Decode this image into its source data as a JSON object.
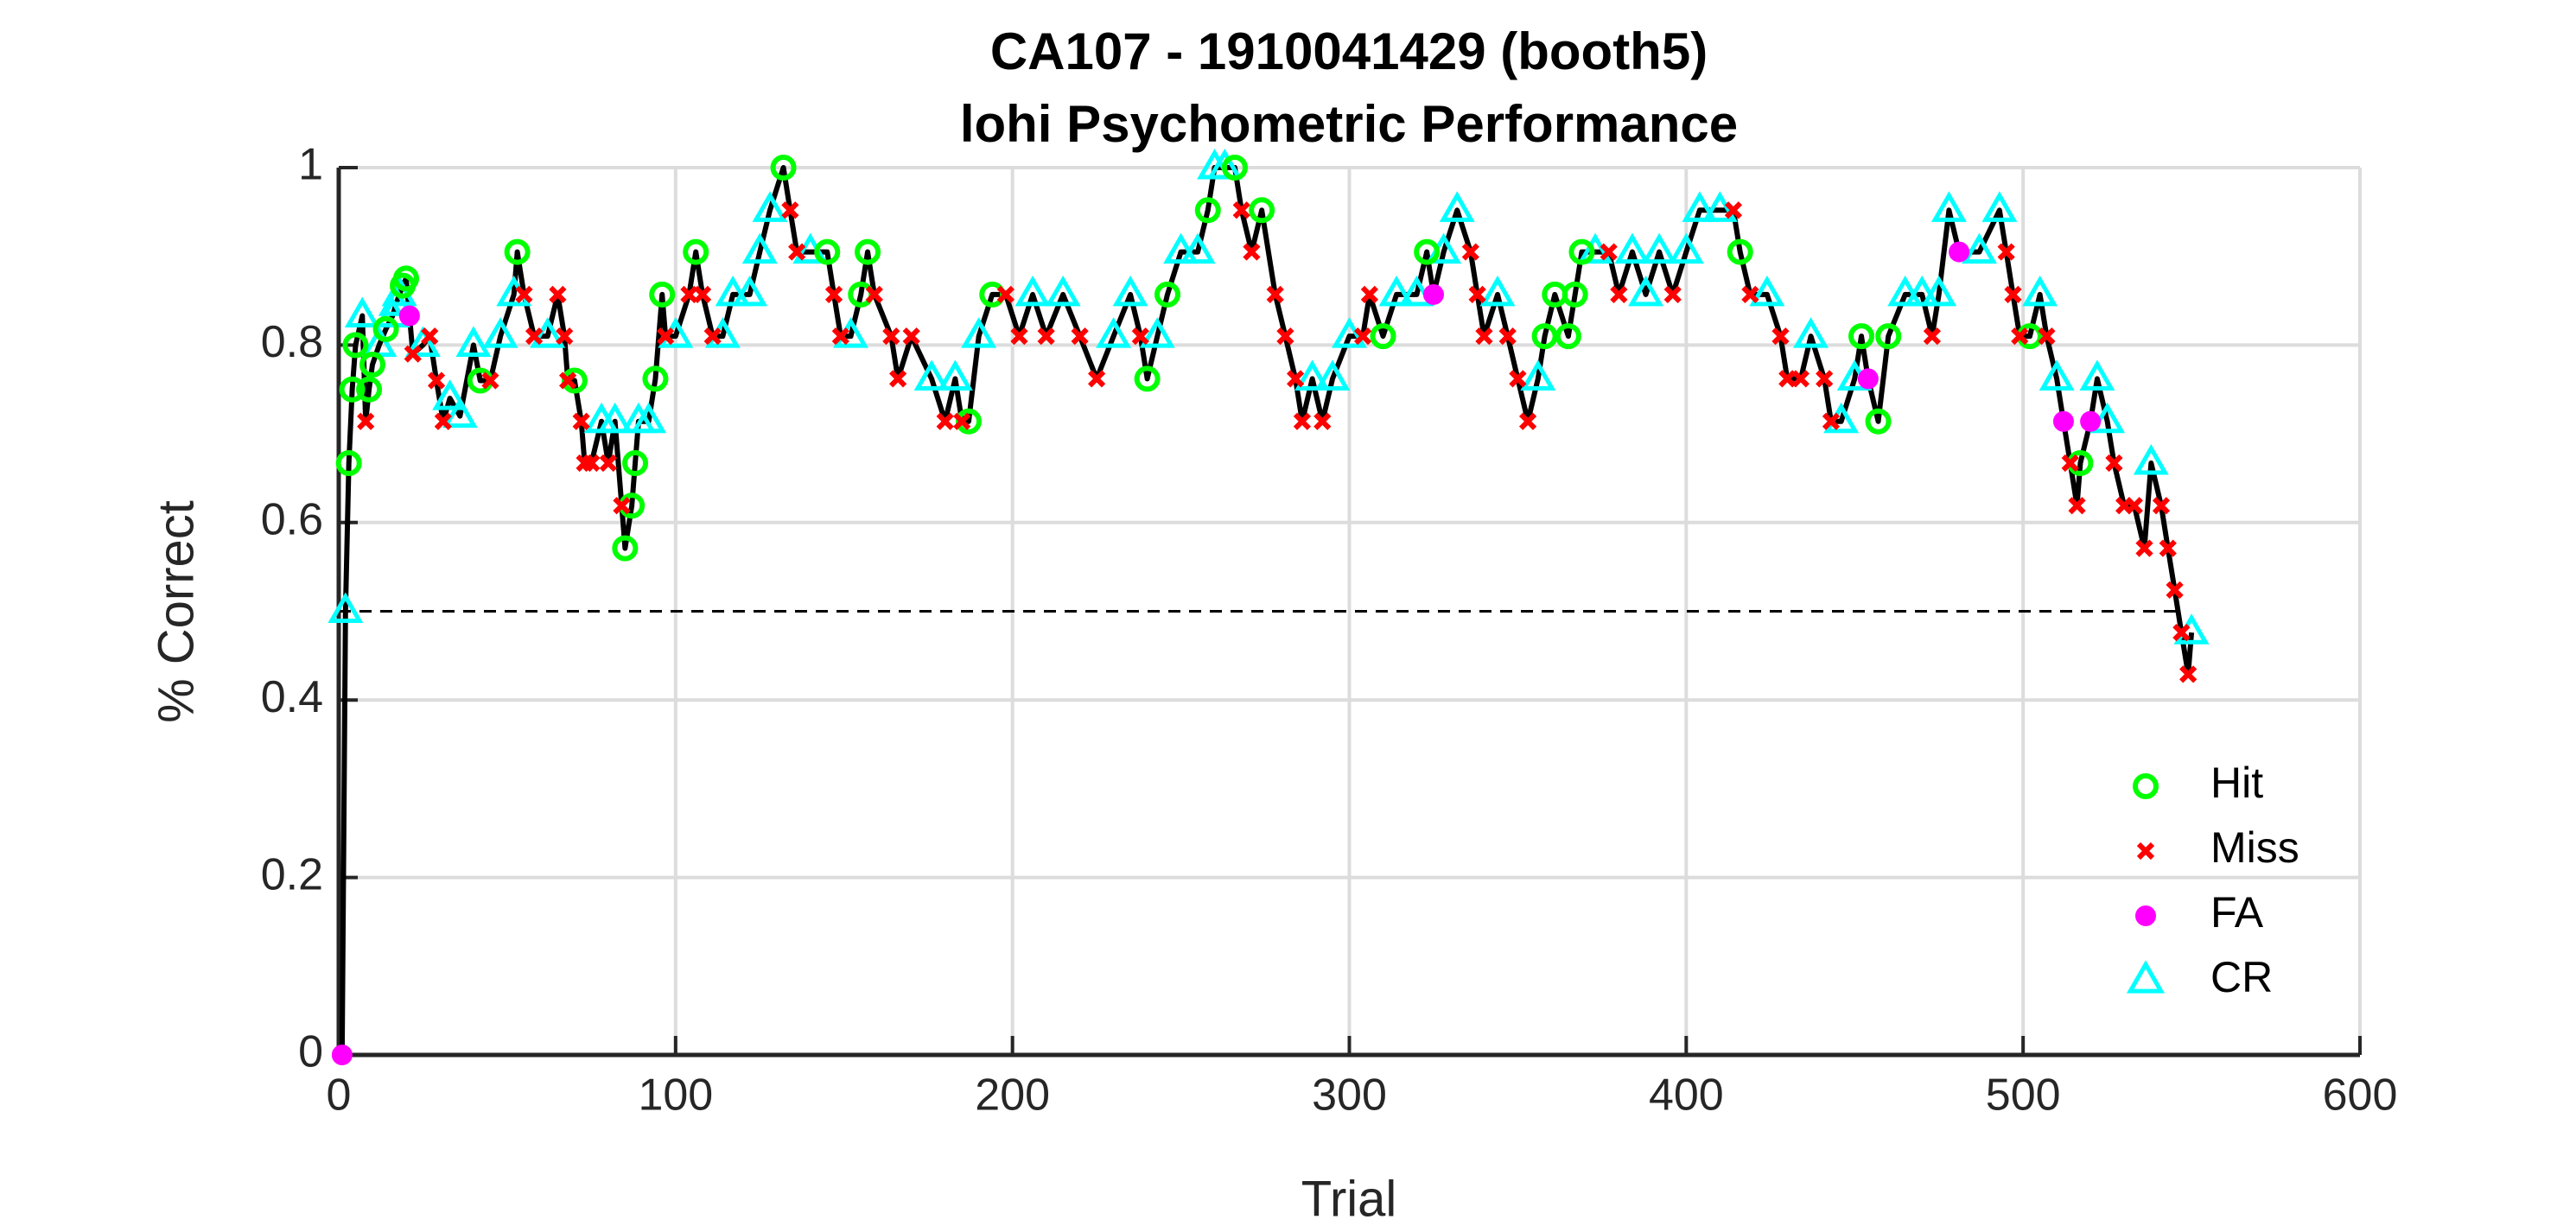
{
  "chart_data": {
    "type": "line",
    "title": "CA107 - 1910041429 (booth5)",
    "subtitle": "lohi Psychometric Performance",
    "xlabel": "Trial",
    "ylabel": "% Correct",
    "xlim": [
      0,
      600
    ],
    "xticks": [
      0,
      100,
      200,
      300,
      400,
      500,
      600
    ],
    "ylim": [
      0,
      1
    ],
    "yticks": [
      0,
      0.2,
      0.4,
      0.6,
      0.8,
      1
    ],
    "grid": true,
    "legend": "right",
    "reference_line": {
      "value": 0.5,
      "xlim": [
        0,
        546
      ],
      "color": "#000000",
      "style": "dashed"
    },
    "line": {
      "color": "#000000",
      "x": [
        1,
        2,
        3,
        4,
        5,
        7,
        8,
        9,
        10,
        12,
        14,
        16,
        17,
        18,
        19,
        20,
        21,
        22,
        25,
        27,
        29,
        31,
        33,
        36,
        40,
        42,
        45,
        48,
        52,
        53,
        55,
        58,
        62,
        65,
        67,
        68,
        70,
        72,
        73,
        75,
        78,
        80,
        82,
        84,
        85,
        87,
        88,
        89,
        92,
        94,
        96,
        97,
        100,
        104,
        106,
        108,
        111,
        114,
        117,
        122,
        125,
        128,
        132,
        134,
        136,
        140,
        145,
        147,
        149,
        152,
        155,
        157,
        159,
        164,
        166,
        170,
        176,
        180,
        183,
        185,
        187,
        190,
        194,
        198,
        202,
        206,
        210,
        215,
        220,
        225,
        230,
        235,
        238,
        240,
        243,
        246,
        250,
        255,
        258,
        260,
        263,
        266,
        268,
        271,
        274,
        278,
        281,
        284,
        286,
        289,
        292,
        295,
        300,
        304,
        306,
        310,
        314,
        320,
        323,
        325,
        328,
        332,
        336,
        338,
        340,
        344,
        347,
        350,
        353,
        356,
        358,
        361,
        365,
        367,
        369,
        373,
        377,
        380,
        384,
        388,
        392,
        396,
        400,
        404,
        410,
        414,
        416,
        419,
        424,
        428,
        430,
        434,
        437,
        441,
        443,
        446,
        450,
        452,
        454,
        457,
        460,
        465,
        470,
        473,
        475,
        478,
        481,
        487,
        493,
        495,
        497,
        499,
        502,
        505,
        507,
        510,
        512,
        514,
        516,
        517,
        520,
        522,
        525,
        527,
        530,
        533,
        536,
        538,
        541,
        543,
        545,
        547,
        549,
        550
      ],
      "values": [
        0,
        0.5,
        0.667,
        0.75,
        0.8,
        0.833,
        0.714,
        0.75,
        0.778,
        0.8,
        0.818,
        0.833,
        0.846,
        0.857,
        0.867,
        0.875,
        0.833,
        0.79,
        0.8,
        0.81,
        0.76,
        0.714,
        0.74,
        0.72,
        0.8,
        0.76,
        0.76,
        0.81,
        0.857,
        0.905,
        0.857,
        0.81,
        0.81,
        0.857,
        0.81,
        0.76,
        0.76,
        0.714,
        0.667,
        0.667,
        0.714,
        0.667,
        0.714,
        0.619,
        0.571,
        0.619,
        0.667,
        0.714,
        0.714,
        0.762,
        0.857,
        0.81,
        0.81,
        0.857,
        0.905,
        0.857,
        0.81,
        0.81,
        0.857,
        0.857,
        0.905,
        0.952,
        1,
        0.952,
        0.905,
        0.905,
        0.905,
        0.857,
        0.81,
        0.81,
        0.857,
        0.905,
        0.857,
        0.81,
        0.762,
        0.81,
        0.762,
        0.714,
        0.762,
        0.714,
        0.714,
        0.81,
        0.857,
        0.857,
        0.81,
        0.857,
        0.81,
        0.857,
        0.81,
        0.762,
        0.81,
        0.857,
        0.81,
        0.762,
        0.81,
        0.857,
        0.905,
        0.905,
        0.952,
        1,
        1,
        1,
        0.952,
        0.905,
        0.952,
        0.857,
        0.81,
        0.762,
        0.714,
        0.762,
        0.714,
        0.762,
        0.81,
        0.81,
        0.857,
        0.81,
        0.857,
        0.857,
        0.905,
        0.857,
        0.905,
        0.952,
        0.905,
        0.857,
        0.81,
        0.857,
        0.81,
        0.762,
        0.714,
        0.762,
        0.81,
        0.857,
        0.81,
        0.857,
        0.905,
        0.905,
        0.905,
        0.857,
        0.905,
        0.857,
        0.905,
        0.857,
        0.905,
        0.952,
        0.952,
        0.952,
        0.905,
        0.857,
        0.857,
        0.81,
        0.762,
        0.762,
        0.81,
        0.762,
        0.714,
        0.714,
        0.762,
        0.81,
        0.762,
        0.714,
        0.81,
        0.857,
        0.857,
        0.81,
        0.857,
        0.952,
        0.905,
        0.905,
        0.952,
        0.905,
        0.857,
        0.81,
        0.81,
        0.857,
        0.81,
        0.762,
        0.714,
        0.667,
        0.619,
        0.667,
        0.714,
        0.762,
        0.714,
        0.667,
        0.619,
        0.619,
        0.571,
        0.667,
        0.619,
        0.571,
        0.524,
        0.476,
        0.429,
        0.476
      ]
    },
    "series": [
      {
        "name": "Hit",
        "color": "#00ff00",
        "marker": "circle",
        "x": [
          3,
          4,
          5,
          9,
          10,
          14,
          19,
          20,
          42,
          53,
          70,
          85,
          87,
          88,
          94,
          96,
          106,
          132,
          145,
          155,
          157,
          187,
          194,
          240,
          246,
          258,
          266,
          274,
          310,
          323,
          358,
          361,
          365,
          367,
          369,
          416,
          452,
          457,
          460,
          502,
          517
        ],
        "values": [
          0.667,
          0.75,
          0.8,
          0.75,
          0.778,
          0.818,
          0.867,
          0.875,
          0.76,
          0.905,
          0.76,
          0.571,
          0.619,
          0.667,
          0.762,
          0.857,
          0.905,
          1,
          0.905,
          0.857,
          0.905,
          0.714,
          0.857,
          0.762,
          0.857,
          0.952,
          1,
          0.952,
          0.81,
          0.905,
          0.81,
          0.857,
          0.81,
          0.857,
          0.905,
          0.905,
          0.81,
          0.714,
          0.81,
          0.81,
          0.667
        ]
      },
      {
        "name": "Miss",
        "color": "#ff0000",
        "marker": "x",
        "x": [
          8,
          22,
          27,
          29,
          31,
          45,
          55,
          58,
          65,
          67,
          68,
          72,
          73,
          75,
          80,
          84,
          97,
          104,
          108,
          111,
          134,
          136,
          147,
          149,
          159,
          164,
          166,
          170,
          180,
          185,
          198,
          202,
          210,
          220,
          225,
          238,
          268,
          271,
          278,
          281,
          284,
          286,
          292,
          304,
          306,
          336,
          338,
          340,
          347,
          350,
          353,
          377,
          380,
          396,
          414,
          419,
          428,
          430,
          434,
          441,
          443,
          473,
          495,
          497,
          499,
          507,
          514,
          516,
          527,
          530,
          533,
          536,
          541,
          543,
          545,
          547,
          549
        ],
        "values": [
          0.714,
          0.79,
          0.81,
          0.76,
          0.714,
          0.76,
          0.857,
          0.81,
          0.857,
          0.81,
          0.76,
          0.714,
          0.667,
          0.667,
          0.667,
          0.619,
          0.81,
          0.857,
          0.857,
          0.81,
          0.952,
          0.905,
          0.857,
          0.81,
          0.857,
          0.81,
          0.762,
          0.81,
          0.714,
          0.714,
          0.857,
          0.81,
          0.81,
          0.81,
          0.762,
          0.81,
          0.952,
          0.905,
          0.857,
          0.81,
          0.762,
          0.714,
          0.714,
          0.81,
          0.857,
          0.905,
          0.857,
          0.81,
          0.81,
          0.762,
          0.714,
          0.905,
          0.857,
          0.857,
          0.952,
          0.857,
          0.81,
          0.762,
          0.762,
          0.762,
          0.714,
          0.81,
          0.905,
          0.857,
          0.81,
          0.81,
          0.667,
          0.619,
          0.667,
          0.619,
          0.619,
          0.571,
          0.619,
          0.571,
          0.524,
          0.476,
          0.429
        ]
      },
      {
        "name": "FA",
        "color": "#ff00ff",
        "marker": "dot",
        "x": [
          1,
          21,
          325,
          454,
          481,
          512,
          520
        ],
        "values": [
          0,
          0.833,
          0.857,
          0.762,
          0.905,
          0.714,
          0.714
        ]
      },
      {
        "name": "CR",
        "color": "#00ffff",
        "marker": "triangle",
        "x": [
          2,
          7,
          12,
          16,
          17,
          18,
          25,
          33,
          36,
          40,
          48,
          52,
          62,
          78,
          82,
          89,
          92,
          100,
          114,
          117,
          122,
          125,
          128,
          140,
          152,
          176,
          183,
          190,
          206,
          215,
          230,
          235,
          243,
          250,
          255,
          260,
          263,
          289,
          295,
          300,
          314,
          320,
          328,
          332,
          344,
          356,
          373,
          384,
          388,
          392,
          400,
          404,
          410,
          424,
          437,
          446,
          450,
          465,
          470,
          475,
          478,
          487,
          493,
          505,
          510,
          522,
          525,
          538,
          550
        ],
        "values": [
          0.5,
          0.833,
          0.8,
          0.833,
          0.846,
          0.857,
          0.8,
          0.74,
          0.72,
          0.8,
          0.81,
          0.857,
          0.81,
          0.714,
          0.714,
          0.714,
          0.714,
          0.81,
          0.81,
          0.857,
          0.857,
          0.905,
          0.952,
          0.905,
          0.81,
          0.762,
          0.762,
          0.81,
          0.857,
          0.857,
          0.81,
          0.857,
          0.81,
          0.905,
          0.905,
          1,
          1,
          0.762,
          0.762,
          0.81,
          0.857,
          0.857,
          0.905,
          0.952,
          0.857,
          0.762,
          0.905,
          0.905,
          0.857,
          0.905,
          0.905,
          0.952,
          0.952,
          0.857,
          0.81,
          0.714,
          0.762,
          0.857,
          0.857,
          0.857,
          0.952,
          0.905,
          0.952,
          0.857,
          0.762,
          0.762,
          0.714,
          0.667,
          0.476
        ]
      }
    ]
  }
}
